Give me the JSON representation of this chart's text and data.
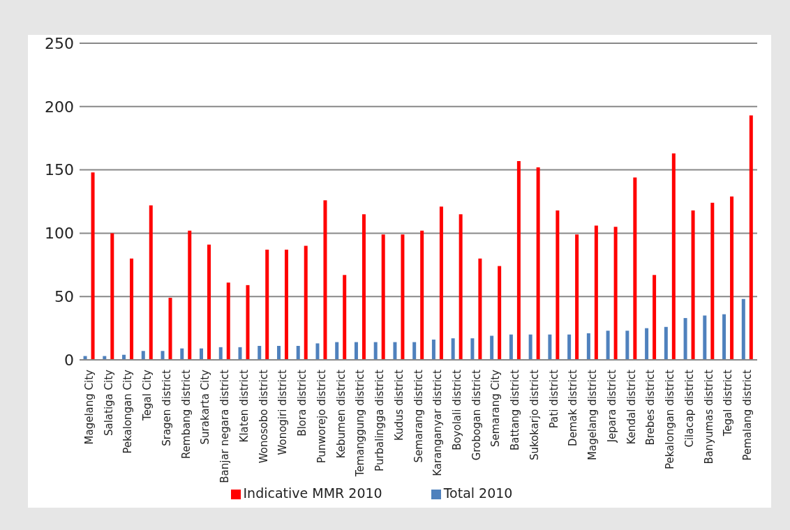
{
  "chart_data": {
    "type": "bar",
    "categories": [
      "Magelang City",
      "Salatiga City",
      "Pekalongan City",
      "Tegal City",
      "Sragen district",
      "Rembang district",
      "Surakarta City",
      "Banjar negara district",
      "Klaten district",
      "Wonosobo district",
      "Wonogiri district",
      "Blora district",
      "Punworejo district",
      "Kebumen district",
      "Temanggung district",
      "Purbalingga district",
      "Kudus district",
      "Semarang district",
      "Karanganyar district",
      "Boyolali district",
      "Grobogan district",
      "Semarang City",
      "Battang district",
      "Sukokarjo district",
      "Pati district",
      "Demak district",
      "Magelang district",
      "Jepara district",
      "Kendal district",
      "Brebes district",
      "Pekalongan district",
      "Cilacap district",
      "Banyumas district",
      "Tegal district",
      "Pemalang district"
    ],
    "series": [
      {
        "name": "Total 2010",
        "color": "#4f81bd",
        "values": [
          3,
          3,
          4,
          7,
          7,
          9,
          9,
          10,
          10,
          11,
          11,
          11,
          13,
          14,
          14,
          14,
          14,
          14,
          16,
          17,
          17,
          19,
          20,
          20,
          20,
          20,
          21,
          23,
          23,
          25,
          26,
          33,
          35,
          36,
          48
        ]
      },
      {
        "name": "Indicative MMR 2010",
        "color": "#ff0000",
        "values": [
          148,
          100,
          80,
          122,
          49,
          102,
          91,
          61,
          59,
          87,
          87,
          90,
          126,
          67,
          115,
          99,
          99,
          102,
          121,
          115,
          80,
          74,
          157,
          152,
          118,
          99,
          106,
          105,
          144,
          67,
          163,
          118,
          124,
          129,
          193
        ]
      }
    ],
    "ylim": [
      0,
      250
    ],
    "yticks": [
      0,
      50,
      100,
      150,
      200,
      250
    ],
    "grid": "y",
    "legend": "bottom"
  }
}
